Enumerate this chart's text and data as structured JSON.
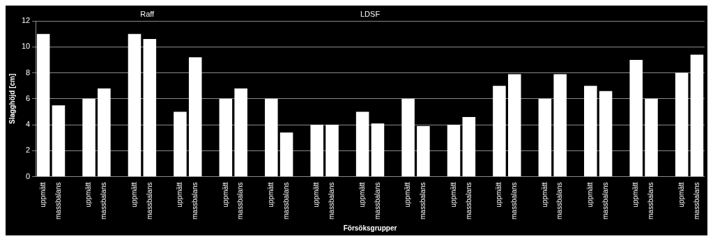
{
  "chart_data": {
    "type": "bar",
    "xlabel": "Försöksgrupper",
    "ylabel": "Slagghöjd [cm]",
    "categories": [
      "uppmätt",
      "massbalans",
      null,
      "uppmätt",
      "massbalans",
      null,
      "uppmätt",
      "massbalans",
      null,
      "uppmätt",
      "massbalans",
      null,
      "uppmätt",
      "massbalans",
      null,
      "uppmätt",
      "massbalans",
      null,
      "uppmätt",
      "massbalans",
      null,
      "uppmätt",
      "massbalans",
      null,
      "uppmätt",
      "massbalans",
      null,
      "uppmätt",
      "massbalans",
      null,
      "uppmätt",
      "massbalans",
      null,
      "uppmätt",
      "massbalans",
      null,
      "uppmätt",
      "massbalans",
      null,
      "uppmätt",
      "massbalans",
      null,
      "uppmätt",
      "massbalans"
    ],
    "values": [
      11,
      5.5,
      null,
      6,
      6.8,
      null,
      11,
      10.6,
      null,
      5,
      9.2,
      null,
      6,
      6.8,
      null,
      6,
      3.4,
      null,
      4,
      4,
      null,
      5,
      4.1,
      null,
      6,
      3.9,
      null,
      4,
      4.6,
      null,
      7,
      7.9,
      null,
      6,
      7.9,
      null,
      7,
      6.6,
      null,
      9,
      6,
      null,
      8,
      9.4
    ],
    "color": "#ffffff",
    "ylim": [
      0,
      12
    ],
    "yticks": [
      0,
      2,
      4,
      6,
      8,
      10,
      12
    ],
    "grid": "y",
    "annotations": [
      "Raff",
      "LDSF"
    ]
  }
}
